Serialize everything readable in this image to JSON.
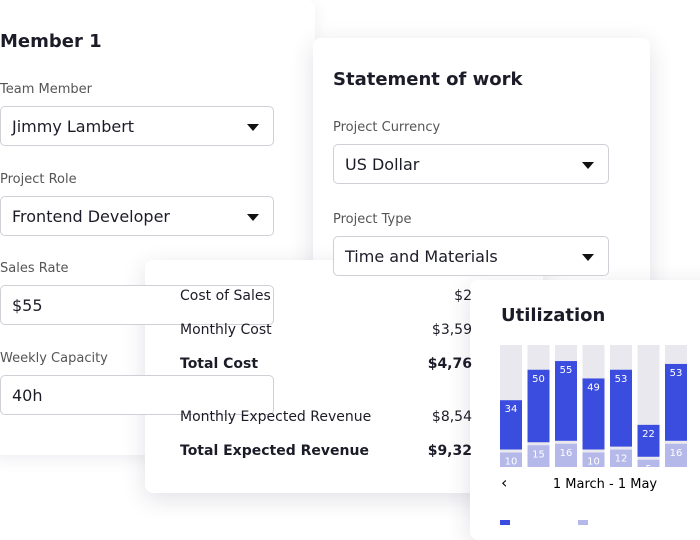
{
  "member": {
    "title": "Member 1",
    "fields": [
      {
        "label": "Team Member",
        "value": "Jimmy Lambert",
        "dropdown": true
      },
      {
        "label": "Project Role",
        "value": "Frontend Developer",
        "dropdown": true
      },
      {
        "label": "Sales Rate",
        "value": "$55",
        "dropdown": false
      },
      {
        "label": "Weekly Capacity",
        "value": "40h",
        "dropdown": false
      }
    ]
  },
  "statement": {
    "title": "Statement of work",
    "fields": [
      {
        "label": "Project Currency",
        "value": "US Dollar",
        "dropdown": true
      },
      {
        "label": "Project Type",
        "value": "Time and Materials",
        "dropdown": true
      }
    ]
  },
  "costs": {
    "rows": [
      {
        "label": "Cost of Sales",
        "value": "$2",
        "bold": false
      },
      {
        "label": "Monthly Cost",
        "value": "$3,59",
        "bold": false
      },
      {
        "label": "Total Cost",
        "value": "$4,76",
        "bold": true
      },
      {
        "label": "Monthly Expected Revenue",
        "value": "$8,54",
        "bold": false
      },
      {
        "label": "Total Expected Revenue",
        "value": "$9,32",
        "bold": true
      }
    ]
  },
  "utilization": {
    "title": "Utilization",
    "type": "bar",
    "stacked": true,
    "series": [
      {
        "color": "#b5b9ea",
        "values": [
          10,
          15,
          16,
          10,
          12,
          5,
          16
        ]
      },
      {
        "color": "#3b4ddf",
        "values": [
          34,
          50,
          55,
          49,
          53,
          22,
          53
        ]
      }
    ],
    "period": "1 March - 1 May"
  }
}
